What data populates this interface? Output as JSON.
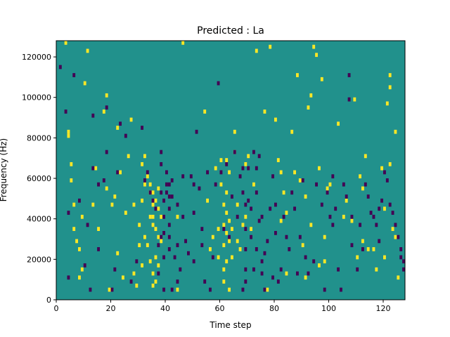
{
  "chart_data": {
    "type": "heatmap",
    "title": "Predicted : La",
    "xlabel": "Time step",
    "ylabel": "Frequency (Hz)",
    "xlim": [
      0,
      128
    ],
    "ylim": [
      0,
      128000
    ],
    "x_ticks": [
      0,
      20,
      40,
      60,
      80,
      100,
      120
    ],
    "y_ticks": [
      0,
      20000,
      40000,
      60000,
      80000,
      100000,
      120000
    ],
    "x_tick_labels": [
      "0",
      "20",
      "40",
      "60",
      "80",
      "100",
      "120"
    ],
    "y_tick_labels": [
      "0",
      "20000",
      "40000",
      "60000",
      "80000",
      "100000",
      "120000"
    ],
    "grid": false,
    "colorscale": "viridis",
    "levels": {
      "low": "#440154",
      "mid": "#21918c",
      "high": "#fde725"
    },
    "background_value": 0.5,
    "value_range": [
      0,
      1
    ],
    "cell_height_hz": 2000,
    "cells_high": [
      [
        3,
        126
      ],
      [
        4,
        82
      ],
      [
        4,
        80
      ],
      [
        5,
        58
      ],
      [
        5,
        66
      ],
      [
        6,
        46
      ],
      [
        6,
        34
      ],
      [
        7,
        28
      ],
      [
        8,
        24
      ],
      [
        8,
        10
      ],
      [
        9,
        14
      ],
      [
        9,
        40
      ],
      [
        10,
        106
      ],
      [
        11,
        122
      ],
      [
        13,
        46
      ],
      [
        14,
        64
      ],
      [
        15,
        34
      ],
      [
        17,
        92
      ],
      [
        18,
        100
      ],
      [
        18,
        54
      ],
      [
        19,
        4
      ],
      [
        20,
        46
      ],
      [
        21,
        50
      ],
      [
        22,
        84
      ],
      [
        22,
        22
      ],
      [
        23,
        62
      ],
      [
        24,
        10
      ],
      [
        25,
        42
      ],
      [
        26,
        70
      ],
      [
        27,
        88
      ],
      [
        28,
        12
      ],
      [
        28,
        46
      ],
      [
        29,
        6
      ],
      [
        30,
        36
      ],
      [
        30,
        26
      ],
      [
        31,
        66
      ],
      [
        31,
        48
      ],
      [
        31,
        16
      ],
      [
        32,
        70
      ],
      [
        32,
        56
      ],
      [
        32,
        30
      ],
      [
        33,
        60
      ],
      [
        33,
        26
      ],
      [
        34,
        56
      ],
      [
        34,
        52
      ],
      [
        34,
        40
      ],
      [
        34,
        18
      ],
      [
        35,
        52
      ],
      [
        35,
        46
      ],
      [
        35,
        40
      ],
      [
        35,
        36
      ],
      [
        35,
        12
      ],
      [
        35,
        6
      ],
      [
        36,
        48
      ],
      [
        36,
        34
      ],
      [
        36,
        20
      ],
      [
        36,
        8
      ],
      [
        37,
        54
      ],
      [
        37,
        44
      ],
      [
        37,
        30
      ],
      [
        37,
        16
      ],
      [
        38,
        40
      ],
      [
        38,
        28
      ],
      [
        44,
        4
      ],
      [
        44,
        40
      ],
      [
        46,
        126
      ],
      [
        54,
        92
      ],
      [
        55,
        48
      ],
      [
        56,
        24
      ],
      [
        57,
        30
      ],
      [
        58,
        64
      ],
      [
        59,
        34
      ],
      [
        59,
        20
      ],
      [
        60,
        68
      ],
      [
        60,
        56
      ],
      [
        61,
        46
      ],
      [
        61,
        36
      ],
      [
        61,
        26
      ],
      [
        61,
        14
      ],
      [
        61,
        8
      ],
      [
        62,
        68
      ],
      [
        62,
        52
      ],
      [
        62,
        42
      ],
      [
        62,
        32
      ],
      [
        62,
        18
      ],
      [
        63,
        62
      ],
      [
        63,
        38
      ],
      [
        63,
        28
      ],
      [
        63,
        4
      ],
      [
        64,
        34
      ],
      [
        64,
        20
      ],
      [
        65,
        82
      ],
      [
        65,
        72
      ],
      [
        66,
        46
      ],
      [
        66,
        28
      ],
      [
        67,
        24
      ],
      [
        68,
        36
      ],
      [
        69,
        66
      ],
      [
        69,
        40
      ],
      [
        70,
        70
      ],
      [
        71,
        34
      ],
      [
        72,
        56
      ],
      [
        73,
        122
      ],
      [
        76,
        92
      ],
      [
        77,
        4
      ],
      [
        78,
        124
      ],
      [
        80,
        88
      ],
      [
        81,
        68
      ],
      [
        82,
        62
      ],
      [
        82,
        38
      ],
      [
        83,
        52
      ],
      [
        84,
        42
      ],
      [
        84,
        12
      ],
      [
        86,
        82
      ],
      [
        87,
        62
      ],
      [
        88,
        110
      ],
      [
        89,
        58
      ],
      [
        90,
        26
      ],
      [
        91,
        50
      ],
      [
        91,
        10
      ],
      [
        92,
        94
      ],
      [
        93,
        100
      ],
      [
        93,
        36
      ],
      [
        94,
        124
      ],
      [
        95,
        120
      ],
      [
        96,
        16
      ],
      [
        96,
        64
      ],
      [
        97,
        108
      ],
      [
        98,
        18
      ],
      [
        98,
        30
      ],
      [
        99,
        54
      ],
      [
        100,
        56
      ],
      [
        103,
        86
      ],
      [
        105,
        40
      ],
      [
        106,
        48
      ],
      [
        108,
        38
      ],
      [
        109,
        98
      ],
      [
        110,
        20
      ],
      [
        111,
        60
      ],
      [
        112,
        54
      ],
      [
        112,
        28
      ],
      [
        113,
        70
      ],
      [
        114,
        24
      ],
      [
        116,
        24
      ],
      [
        117,
        14
      ],
      [
        119,
        64
      ],
      [
        120,
        44
      ],
      [
        120,
        20
      ],
      [
        121,
        96
      ],
      [
        122,
        66
      ],
      [
        122,
        110
      ],
      [
        122,
        104
      ],
      [
        123,
        34
      ],
      [
        124,
        30
      ],
      [
        124,
        82
      ],
      [
        125,
        10
      ]
    ],
    "cells_low": [
      [
        1,
        114
      ],
      [
        3,
        92
      ],
      [
        4,
        10
      ],
      [
        4,
        42
      ],
      [
        6,
        110
      ],
      [
        8,
        48
      ],
      [
        10,
        16
      ],
      [
        11,
        36
      ],
      [
        12,
        4
      ],
      [
        13,
        64
      ],
      [
        13,
        90
      ],
      [
        15,
        24
      ],
      [
        15,
        56
      ],
      [
        17,
        58
      ],
      [
        18,
        94
      ],
      [
        18,
        72
      ],
      [
        20,
        4
      ],
      [
        21,
        14
      ],
      [
        22,
        62
      ],
      [
        23,
        86
      ],
      [
        25,
        80
      ],
      [
        27,
        8
      ],
      [
        29,
        18
      ],
      [
        31,
        84
      ],
      [
        32,
        58
      ],
      [
        33,
        62
      ],
      [
        34,
        52
      ],
      [
        35,
        48
      ],
      [
        36,
        44
      ],
      [
        37,
        12
      ],
      [
        37,
        26
      ],
      [
        38,
        30
      ],
      [
        38,
        52
      ],
      [
        38,
        66
      ],
      [
        38,
        72
      ],
      [
        39,
        4
      ],
      [
        39,
        20
      ],
      [
        39,
        32
      ],
      [
        39,
        40
      ],
      [
        39,
        48
      ],
      [
        40,
        52
      ],
      [
        40,
        56
      ],
      [
        40,
        62
      ],
      [
        41,
        56
      ],
      [
        41,
        50
      ],
      [
        41,
        44
      ],
      [
        41,
        36
      ],
      [
        41,
        30
      ],
      [
        41,
        24
      ],
      [
        42,
        4
      ],
      [
        42,
        50
      ],
      [
        42,
        58
      ],
      [
        43,
        20
      ],
      [
        44,
        8
      ],
      [
        44,
        26
      ],
      [
        44,
        46
      ],
      [
        45,
        14
      ],
      [
        46,
        40
      ],
      [
        46,
        60
      ],
      [
        47,
        28
      ],
      [
        48,
        22
      ],
      [
        49,
        60
      ],
      [
        50,
        56
      ],
      [
        50,
        42
      ],
      [
        50,
        18
      ],
      [
        51,
        82
      ],
      [
        52,
        54
      ],
      [
        53,
        34
      ],
      [
        53,
        26
      ],
      [
        54,
        8
      ],
      [
        55,
        62
      ],
      [
        56,
        4
      ],
      [
        57,
        20
      ],
      [
        58,
        56
      ],
      [
        59,
        106
      ],
      [
        60,
        62
      ],
      [
        61,
        34
      ],
      [
        62,
        66
      ],
      [
        63,
        30
      ],
      [
        64,
        50
      ],
      [
        65,
        72
      ],
      [
        66,
        40
      ],
      [
        67,
        60
      ],
      [
        68,
        64
      ],
      [
        68,
        52
      ],
      [
        68,
        4
      ],
      [
        69,
        46
      ],
      [
        69,
        34
      ],
      [
        69,
        24
      ],
      [
        69,
        14
      ],
      [
        69,
        8
      ],
      [
        70,
        48
      ],
      [
        70,
        64
      ],
      [
        71,
        44
      ],
      [
        71,
        30
      ],
      [
        72,
        72
      ],
      [
        72,
        14
      ],
      [
        73,
        64
      ],
      [
        73,
        52
      ],
      [
        73,
        24
      ],
      [
        74,
        38
      ],
      [
        74,
        70
      ],
      [
        75,
        40
      ],
      [
        75,
        12
      ],
      [
        75,
        18
      ],
      [
        76,
        4
      ],
      [
        76,
        22
      ],
      [
        77,
        28
      ],
      [
        78,
        44
      ],
      [
        79,
        10
      ],
      [
        79,
        60
      ],
      [
        80,
        46
      ],
      [
        80,
        32
      ],
      [
        81,
        8
      ],
      [
        82,
        14
      ],
      [
        83,
        40
      ],
      [
        84,
        30
      ],
      [
        85,
        24
      ],
      [
        86,
        52
      ],
      [
        87,
        44
      ],
      [
        88,
        12
      ],
      [
        89,
        30
      ],
      [
        90,
        58
      ],
      [
        91,
        20
      ],
      [
        92,
        12
      ],
      [
        94,
        18
      ],
      [
        95,
        56
      ],
      [
        97,
        46
      ],
      [
        98,
        4
      ],
      [
        99,
        52
      ],
      [
        100,
        40
      ],
      [
        101,
        36
      ],
      [
        101,
        60
      ],
      [
        102,
        44
      ],
      [
        103,
        14
      ],
      [
        104,
        4
      ],
      [
        105,
        56
      ],
      [
        106,
        50
      ],
      [
        107,
        110
      ],
      [
        107,
        98
      ],
      [
        108,
        40
      ],
      [
        108,
        26
      ],
      [
        110,
        14
      ],
      [
        111,
        36
      ],
      [
        112,
        24
      ],
      [
        113,
        56
      ],
      [
        114,
        50
      ],
      [
        115,
        42
      ],
      [
        116,
        40
      ],
      [
        117,
        36
      ],
      [
        118,
        28
      ],
      [
        118,
        44
      ],
      [
        119,
        48
      ],
      [
        120,
        62
      ],
      [
        121,
        58
      ],
      [
        122,
        46
      ],
      [
        123,
        42
      ],
      [
        124,
        36
      ],
      [
        125,
        30
      ],
      [
        126,
        24
      ],
      [
        126,
        20
      ],
      [
        127,
        18
      ],
      [
        127,
        14
      ]
    ]
  }
}
